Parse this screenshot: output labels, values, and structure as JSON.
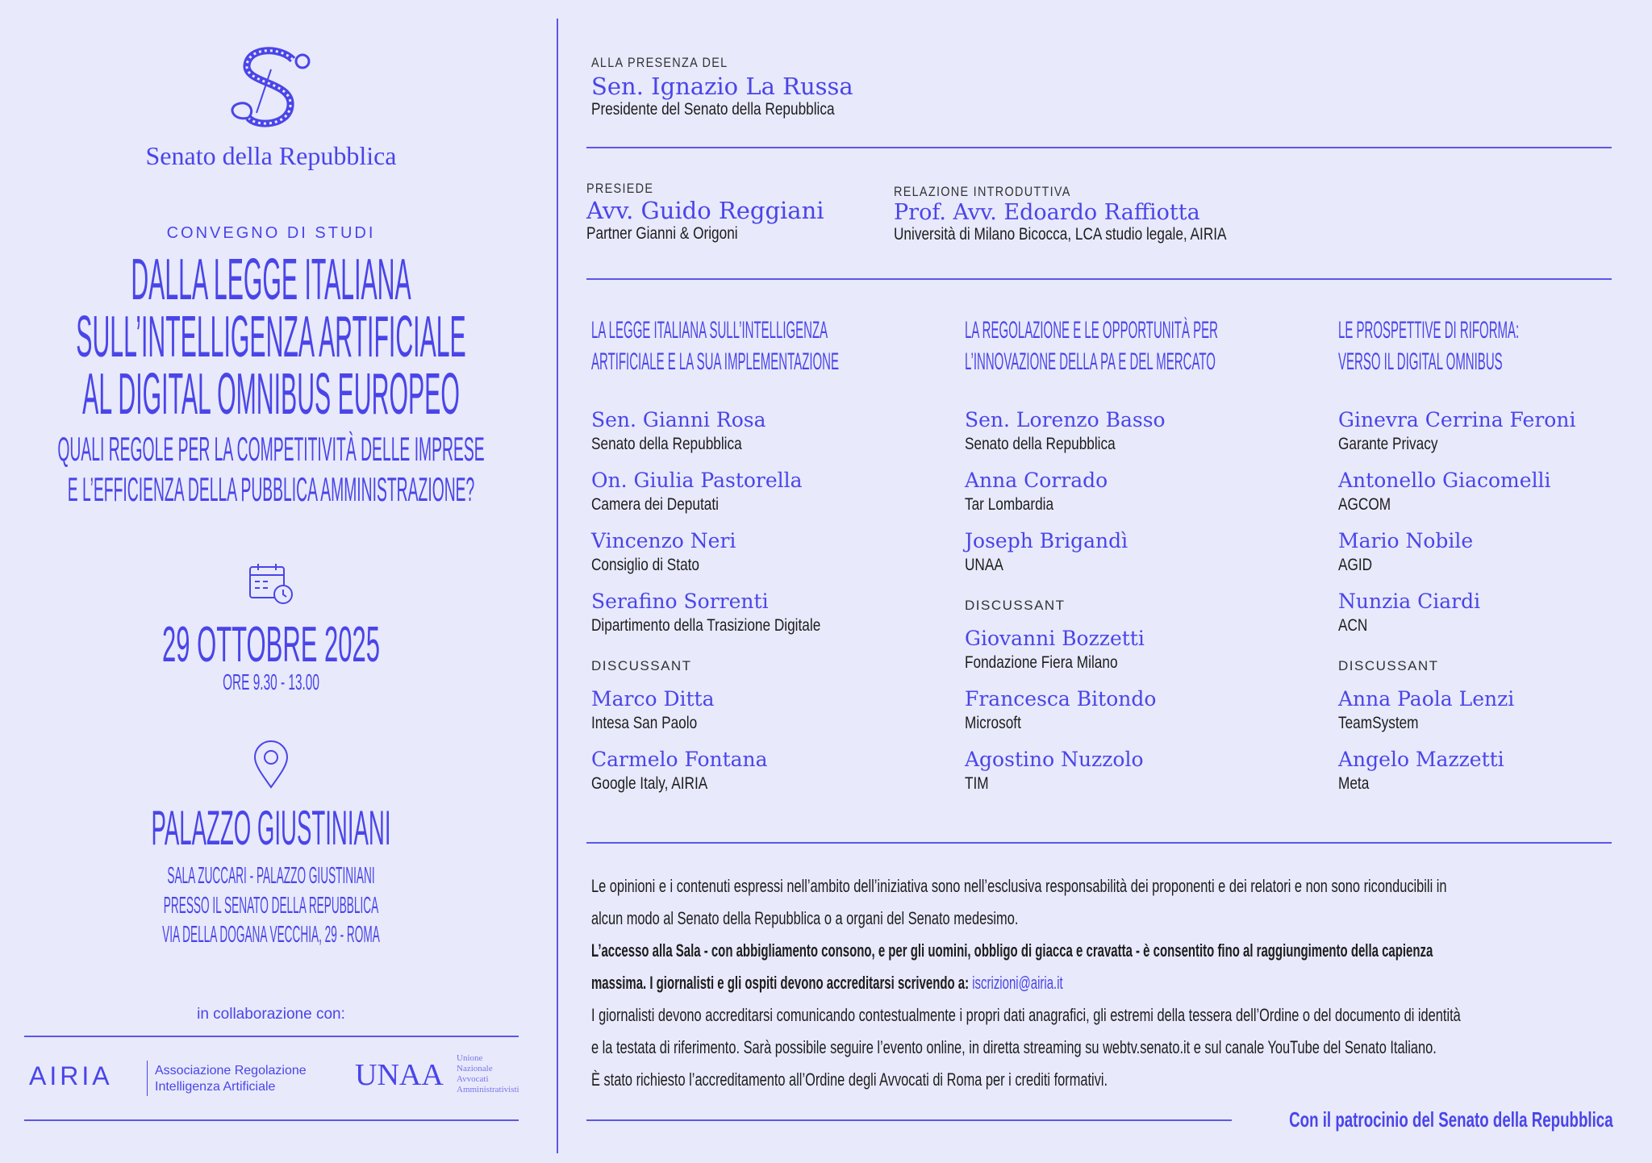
{
  "colors": {
    "background": "#e8e9fb",
    "accent": "#4a45e8",
    "text": "#1d1d1d"
  },
  "left": {
    "logo_icon": "senato-s-emblem",
    "institution": "Senato della Repubblica",
    "kicker": "CONVEGNO DI STUDI",
    "title_lines": [
      "DALLA LEGGE ITALIANA",
      "SULL’INTELLIGENZA ARTIFICIALE",
      "AL DIGITAL OMNIBUS EUROPEO"
    ],
    "subtitle_lines": [
      "QUALI REGOLE PER LA COMPETITIVITÀ DELLE IMPRESE",
      "E L’EFFICIENZA DELLA PUBBLICA AMMINISTRAZIONE?"
    ],
    "calendar_icon": "calendar-clock-icon",
    "date": "29 OTTOBRE 2025",
    "time": "ORE 9.30 - 13.00",
    "location_icon": "map-pin-icon",
    "venue": "PALAZZO GIUSTINIANI",
    "venue_lines": [
      "SALA ZUCCARI - PALAZZO GIUSTINIANI",
      "PRESSO IL SENATO DELLA REPUBBLICA",
      "VIA DELLA DOGANA VECCHIA, 29 - ROMA"
    ],
    "collab_label": "in collaborazione con:",
    "airia": {
      "logo": "AIRIA",
      "line1": "Associazione Regolazione",
      "line2": "Intelligenza Artificiale"
    },
    "unaa": {
      "logo": "UNAA",
      "words": [
        "Unione",
        "Nazionale",
        "Avvocati",
        "Amministrativisti"
      ]
    }
  },
  "presence": {
    "label": "ALLA PRESENZA DEL",
    "name": "Sen. Ignazio La Russa",
    "role": "Presidente del Senato della Repubblica"
  },
  "chair": {
    "label": "PRESIEDE",
    "name": "Avv. Guido Reggiani",
    "role": "Partner Gianni & Origoni"
  },
  "intro": {
    "label": "RELAZIONE INTRODUTTIVA",
    "name": "Prof. Avv. Edoardo Raffiotta",
    "role": "Università di Milano Bicocca, LCA studio legale, AIRIA"
  },
  "discussant_label": "DISCUSSANT",
  "columns": [
    {
      "title": [
        "LA LEGGE ITALIANA SULL’INTELLIGENZA",
        "ARTIFICIALE E LA SUA IMPLEMENTAZIONE"
      ],
      "speakers": [
        {
          "name": "Sen. Gianni Rosa",
          "role": "Senato della Repubblica"
        },
        {
          "name": "On. Giulia Pastorella",
          "role": "Camera dei Deputati"
        },
        {
          "name": "Vincenzo Neri",
          "role": "Consiglio di Stato"
        },
        {
          "name": "Serafino Sorrenti",
          "role": "Dipartimento della Trasizione Digitale"
        }
      ],
      "discussants": [
        {
          "name": "Marco Ditta",
          "role": "Intesa San Paolo"
        },
        {
          "name": "Carmelo Fontana",
          "role": "Google Italy, AIRIA"
        }
      ]
    },
    {
      "title": [
        "LA REGOLAZIONE E LE OPPORTUNITÀ PER",
        "L’INNOVAZIONE DELLA PA E DEL MERCATO"
      ],
      "speakers": [
        {
          "name": "Sen. Lorenzo Basso",
          "role": "Senato della Repubblica"
        },
        {
          "name": "Anna Corrado",
          "role": "Tar Lombardia"
        },
        {
          "name": "Joseph Brigandì",
          "role": "UNAA"
        }
      ],
      "discussants": [
        {
          "name": "Giovanni Bozzetti",
          "role": "Fondazione Fiera Milano"
        },
        {
          "name": "Francesca Bitondo",
          "role": "Microsoft"
        },
        {
          "name": "Agostino Nuzzolo",
          "role": "TIM"
        }
      ]
    },
    {
      "title": [
        "LE PROSPETTIVE DI RIFORMA:",
        "VERSO IL DIGITAL OMNIBUS"
      ],
      "speakers": [
        {
          "name": "Ginevra Cerrina Feroni",
          "role": "Garante Privacy"
        },
        {
          "name": "Antonello Giacomelli",
          "role": "AGCOM"
        },
        {
          "name": "Mario Nobile",
          "role": "AGID"
        },
        {
          "name": "Nunzia Ciardi",
          "role": "ACN"
        }
      ],
      "discussants": [
        {
          "name": "Anna Paola Lenzi",
          "role": "TeamSystem"
        },
        {
          "name": "Angelo Mazzetti",
          "role": "Meta"
        }
      ]
    }
  ],
  "notes": {
    "l1": "Le opinioni e i contenuti espressi nell’ambito dell’iniziativa sono nell’esclusiva responsabilità dei proponenti e dei relatori e non sono riconducibili in",
    "l2": "alcun modo al Senato della Repubblica o a organi del Senato medesimo.",
    "l3": "L’accesso alla Sala - con abbigliamento consono, e per gli uomini, obbligo di giacca e cravatta - è consentito fino al raggiungimento della capienza",
    "l4": "massima.  I giornalisti e gli ospiti devono accreditarsi scrivendo a: ",
    "email": "iscrizioni@airia.it",
    "l5": "I giornalisti devono accreditarsi comunicando contestualmente i propri dati anagrafici, gli estremi della tessera dell’Ordine o del documento di identità",
    "l6": "e la testata di riferimento. Sarà possibile seguire l’evento online, in diretta streaming su webtv.senato.it e sul canale YouTube del Senato Italiano.",
    "l7": "È stato richiesto l’accreditamento all’Ordine degli Avvocati di Roma per i crediti formativi."
  },
  "patronage": "Con il patrocinio del Senato della Repubblica"
}
